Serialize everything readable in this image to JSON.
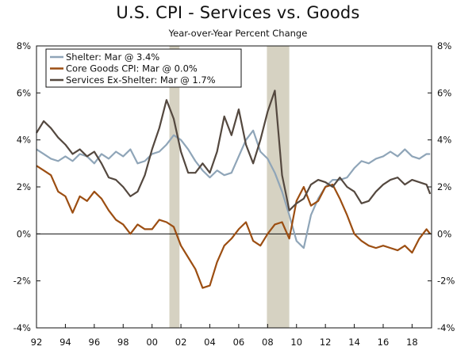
{
  "chart_data": {
    "type": "line",
    "title": "U.S. CPI - Services vs. Goods",
    "subtitle": "Year-over-Year Percent Change",
    "xlabel": "",
    "ylabel": "",
    "xlim": [
      1992.0,
      2019.35
    ],
    "ylim": [
      -4,
      8
    ],
    "y_ticks": [
      -4,
      -2,
      0,
      2,
      4,
      6,
      8
    ],
    "y_tick_labels": [
      "-4%",
      "-2%",
      "0%",
      "2%",
      "4%",
      "6%",
      "8%"
    ],
    "x_ticks": [
      1992,
      1994,
      1996,
      1998,
      2000,
      2002,
      2004,
      2006,
      2008,
      2010,
      2012,
      2014,
      2016,
      2018
    ],
    "x_tick_labels": [
      "92",
      "94",
      "96",
      "98",
      "00",
      "02",
      "04",
      "06",
      "08",
      "10",
      "12",
      "14",
      "16",
      "18"
    ],
    "axes_both_sides": true,
    "zero_line": true,
    "grid": false,
    "legend_position": "top-left",
    "recession_shading": [
      [
        2001.2,
        2001.9
      ],
      [
        2007.95,
        2009.5
      ]
    ],
    "recession_color": "#d6d2c2",
    "series": [
      {
        "name": "Shelter: Mar @ 3.4%",
        "color": "#8fa5b8",
        "x": [
          1992.0,
          1992.5,
          1993.0,
          1993.5,
          1994.0,
          1994.5,
          1995.0,
          1995.5,
          1996.0,
          1996.5,
          1997.0,
          1997.5,
          1998.0,
          1998.5,
          1999.0,
          1999.5,
          2000.0,
          2000.5,
          2001.0,
          2001.5,
          2002.0,
          2002.5,
          2003.0,
          2003.5,
          2004.0,
          2004.5,
          2005.0,
          2005.5,
          2006.0,
          2006.5,
          2007.0,
          2007.5,
          2008.0,
          2008.5,
          2009.0,
          2009.5,
          2010.0,
          2010.5,
          2011.0,
          2011.5,
          2012.0,
          2012.5,
          2013.0,
          2013.5,
          2014.0,
          2014.5,
          2015.0,
          2015.5,
          2016.0,
          2016.5,
          2017.0,
          2017.5,
          2018.0,
          2018.5,
          2019.0,
          2019.25
        ],
        "values": [
          3.6,
          3.4,
          3.2,
          3.1,
          3.3,
          3.1,
          3.4,
          3.3,
          3.0,
          3.4,
          3.2,
          3.5,
          3.3,
          3.6,
          3.0,
          3.1,
          3.4,
          3.5,
          3.8,
          4.2,
          4.0,
          3.6,
          3.1,
          2.7,
          2.4,
          2.7,
          2.5,
          2.6,
          3.3,
          4.0,
          4.4,
          3.5,
          3.2,
          2.6,
          1.8,
          0.8,
          -0.3,
          -0.6,
          0.8,
          1.5,
          2.0,
          2.3,
          2.3,
          2.4,
          2.8,
          3.1,
          3.0,
          3.2,
          3.3,
          3.5,
          3.3,
          3.6,
          3.3,
          3.2,
          3.4,
          3.4
        ]
      },
      {
        "name": "Core Goods CPI: Mar @ 0.0%",
        "color": "#9c4e12",
        "x": [
          1992.0,
          1992.5,
          1993.0,
          1993.5,
          1994.0,
          1994.5,
          1995.0,
          1995.5,
          1996.0,
          1996.5,
          1997.0,
          1997.5,
          1998.0,
          1998.5,
          1999.0,
          1999.5,
          2000.0,
          2000.5,
          2001.0,
          2001.5,
          2002.0,
          2002.5,
          2003.0,
          2003.5,
          2004.0,
          2004.5,
          2005.0,
          2005.5,
          2006.0,
          2006.5,
          2007.0,
          2007.5,
          2008.0,
          2008.5,
          2009.0,
          2009.5,
          2010.0,
          2010.5,
          2011.0,
          2011.5,
          2012.0,
          2012.5,
          2013.0,
          2013.5,
          2014.0,
          2014.5,
          2015.0,
          2015.5,
          2016.0,
          2016.5,
          2017.0,
          2017.5,
          2018.0,
          2018.5,
          2019.0,
          2019.25
        ],
        "values": [
          2.9,
          2.7,
          2.5,
          1.8,
          1.6,
          0.9,
          1.6,
          1.4,
          1.8,
          1.5,
          1.0,
          0.6,
          0.4,
          0.0,
          0.4,
          0.2,
          0.2,
          0.6,
          0.5,
          0.3,
          -0.5,
          -1.0,
          -1.5,
          -2.3,
          -2.2,
          -1.2,
          -0.5,
          -0.2,
          0.2,
          0.5,
          -0.3,
          -0.5,
          0.0,
          0.4,
          0.5,
          -0.2,
          1.4,
          2.0,
          1.2,
          1.4,
          2.0,
          2.1,
          1.5,
          0.8,
          0.0,
          -0.3,
          -0.5,
          -0.6,
          -0.5,
          -0.6,
          -0.7,
          -0.5,
          -0.8,
          -0.2,
          0.2,
          0.0
        ]
      },
      {
        "name": "Services Ex-Shelter: Mar @ 1.7%",
        "color": "#54483f",
        "x": [
          1992.0,
          1992.5,
          1993.0,
          1993.5,
          1994.0,
          1994.5,
          1995.0,
          1995.5,
          1996.0,
          1996.5,
          1997.0,
          1997.5,
          1998.0,
          1998.5,
          1999.0,
          1999.5,
          2000.0,
          2000.5,
          2001.0,
          2001.5,
          2002.0,
          2002.5,
          2003.0,
          2003.5,
          2004.0,
          2004.5,
          2005.0,
          2005.5,
          2006.0,
          2006.5,
          2007.0,
          2007.5,
          2008.0,
          2008.5,
          2009.0,
          2009.5,
          2010.0,
          2010.5,
          2011.0,
          2011.5,
          2012.0,
          2012.5,
          2013.0,
          2013.5,
          2014.0,
          2014.5,
          2015.0,
          2015.5,
          2016.0,
          2016.5,
          2017.0,
          2017.5,
          2018.0,
          2018.5,
          2019.0,
          2019.25
        ],
        "values": [
          4.3,
          4.8,
          4.5,
          4.1,
          3.8,
          3.4,
          3.6,
          3.3,
          3.5,
          3.0,
          2.4,
          2.3,
          2.0,
          1.6,
          1.8,
          2.5,
          3.6,
          4.5,
          5.7,
          4.9,
          3.5,
          2.6,
          2.6,
          3.0,
          2.6,
          3.5,
          5.0,
          4.2,
          5.3,
          3.8,
          3.0,
          4.0,
          5.2,
          6.1,
          2.5,
          1.0,
          1.3,
          1.5,
          2.1,
          2.3,
          2.2,
          2.0,
          2.4,
          2.0,
          1.8,
          1.3,
          1.4,
          1.8,
          2.1,
          2.3,
          2.4,
          2.1,
          2.3,
          2.2,
          2.1,
          1.7
        ]
      }
    ]
  }
}
